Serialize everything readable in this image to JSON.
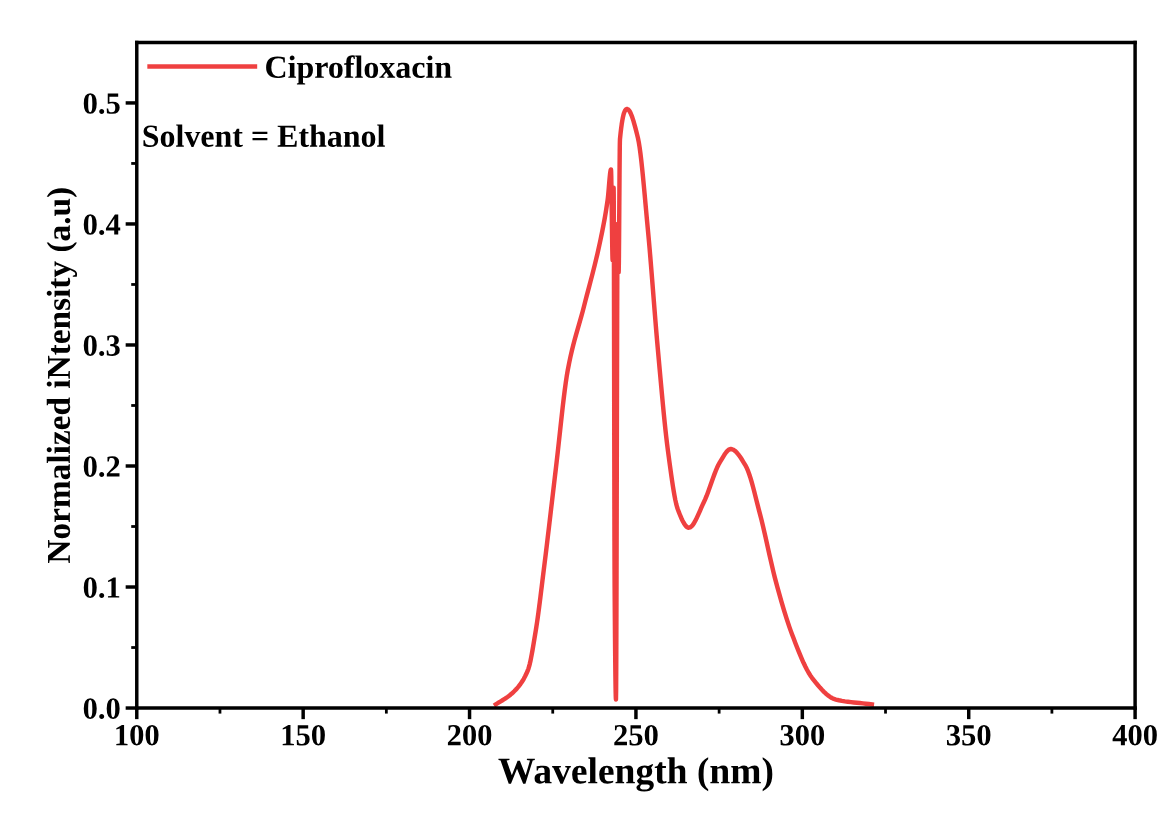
{
  "chart_data": {
    "type": "line",
    "xlabel": "Wavelength (nm)",
    "ylabel": "Normalized iNtensity (a.u)",
    "annotations": [
      "Solvent = Ethanol"
    ],
    "series": [
      {
        "name": "Ciprofloxacin",
        "color": "#ef4040",
        "x": [
          207.9,
          212.7,
          217.5,
          219.9,
          222.3,
          225.9,
          229.5,
          234.4,
          239.2,
          241.5,
          242.5,
          243.0,
          243.3,
          243.6,
          244.0,
          244.5,
          244.8,
          245.2,
          247.3,
          250.6,
          253.6,
          256.6,
          259.6,
          262.6,
          265.9,
          270.4,
          275.2,
          278.5,
          283.0,
          287.3,
          292.1,
          296.9,
          302.9,
          310.1,
          320.9
        ],
        "values": [
          0.003,
          0.012,
          0.031,
          0.064,
          0.114,
          0.197,
          0.279,
          0.332,
          0.385,
          0.42,
          0.445,
          0.37,
          0.43,
          0.1,
          0.007,
          0.4,
          0.36,
          0.47,
          0.495,
          0.471,
          0.395,
          0.296,
          0.213,
          0.164,
          0.149,
          0.17,
          0.203,
          0.214,
          0.2,
          0.16,
          0.104,
          0.061,
          0.025,
          0.007,
          0.003
        ]
      }
    ],
    "xlim": [
      100,
      400
    ],
    "xticks": [
      100,
      150,
      200,
      250,
      300,
      350,
      400
    ],
    "ylim": [
      0,
      0.55
    ],
    "yticks": [
      {
        "value": 0,
        "label": "0.0"
      },
      0.1,
      0.2,
      0.3,
      0.4,
      0.5
    ],
    "legend": "top left",
    "grid": false,
    "marker": "none",
    "line_style": "solid"
  }
}
